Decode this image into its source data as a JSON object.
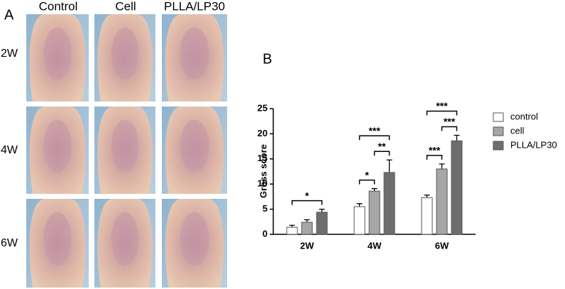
{
  "panel_a": {
    "label": "A",
    "columns": [
      "Control",
      "Cell",
      "PLLA/LP30"
    ],
    "rows": [
      "2W",
      "4W",
      "6W"
    ]
  },
  "chart_data": {
    "type": "bar",
    "panel_label": "B",
    "y_label": "Gross score",
    "categories": [
      "2W",
      "4W",
      "6W"
    ],
    "series": [
      {
        "name": "control",
        "color": "#ffffff",
        "values": [
          1.4,
          5.5,
          7.3
        ],
        "errors": [
          0.4,
          0.6,
          0.5
        ]
      },
      {
        "name": "cell",
        "color": "#a6a6a6",
        "values": [
          2.4,
          8.6,
          13.0
        ],
        "errors": [
          0.5,
          0.5,
          1.0
        ]
      },
      {
        "name": "PLLA/LP30",
        "color": "#6e6e6e",
        "values": [
          4.4,
          12.3,
          18.6
        ],
        "errors": [
          0.6,
          2.5,
          1.1
        ]
      }
    ],
    "ylim": [
      0,
      25
    ],
    "yticks": [
      0,
      5,
      10,
      15,
      20,
      25
    ],
    "legend": "right",
    "annotations": [
      {
        "text": "*",
        "category": 0,
        "series": [
          0,
          2
        ]
      },
      {
        "text": "*",
        "category": 1,
        "series": [
          0,
          1
        ]
      },
      {
        "text": "**",
        "category": 1,
        "series": [
          1,
          2
        ]
      },
      {
        "text": "***",
        "category": 1,
        "series": [
          0,
          2
        ]
      },
      {
        "text": "***",
        "category": 2,
        "series": [
          0,
          1
        ]
      },
      {
        "text": "***",
        "category": 2,
        "series": [
          1,
          2
        ]
      },
      {
        "text": "***",
        "category": 2,
        "series": [
          0,
          2
        ]
      }
    ]
  }
}
